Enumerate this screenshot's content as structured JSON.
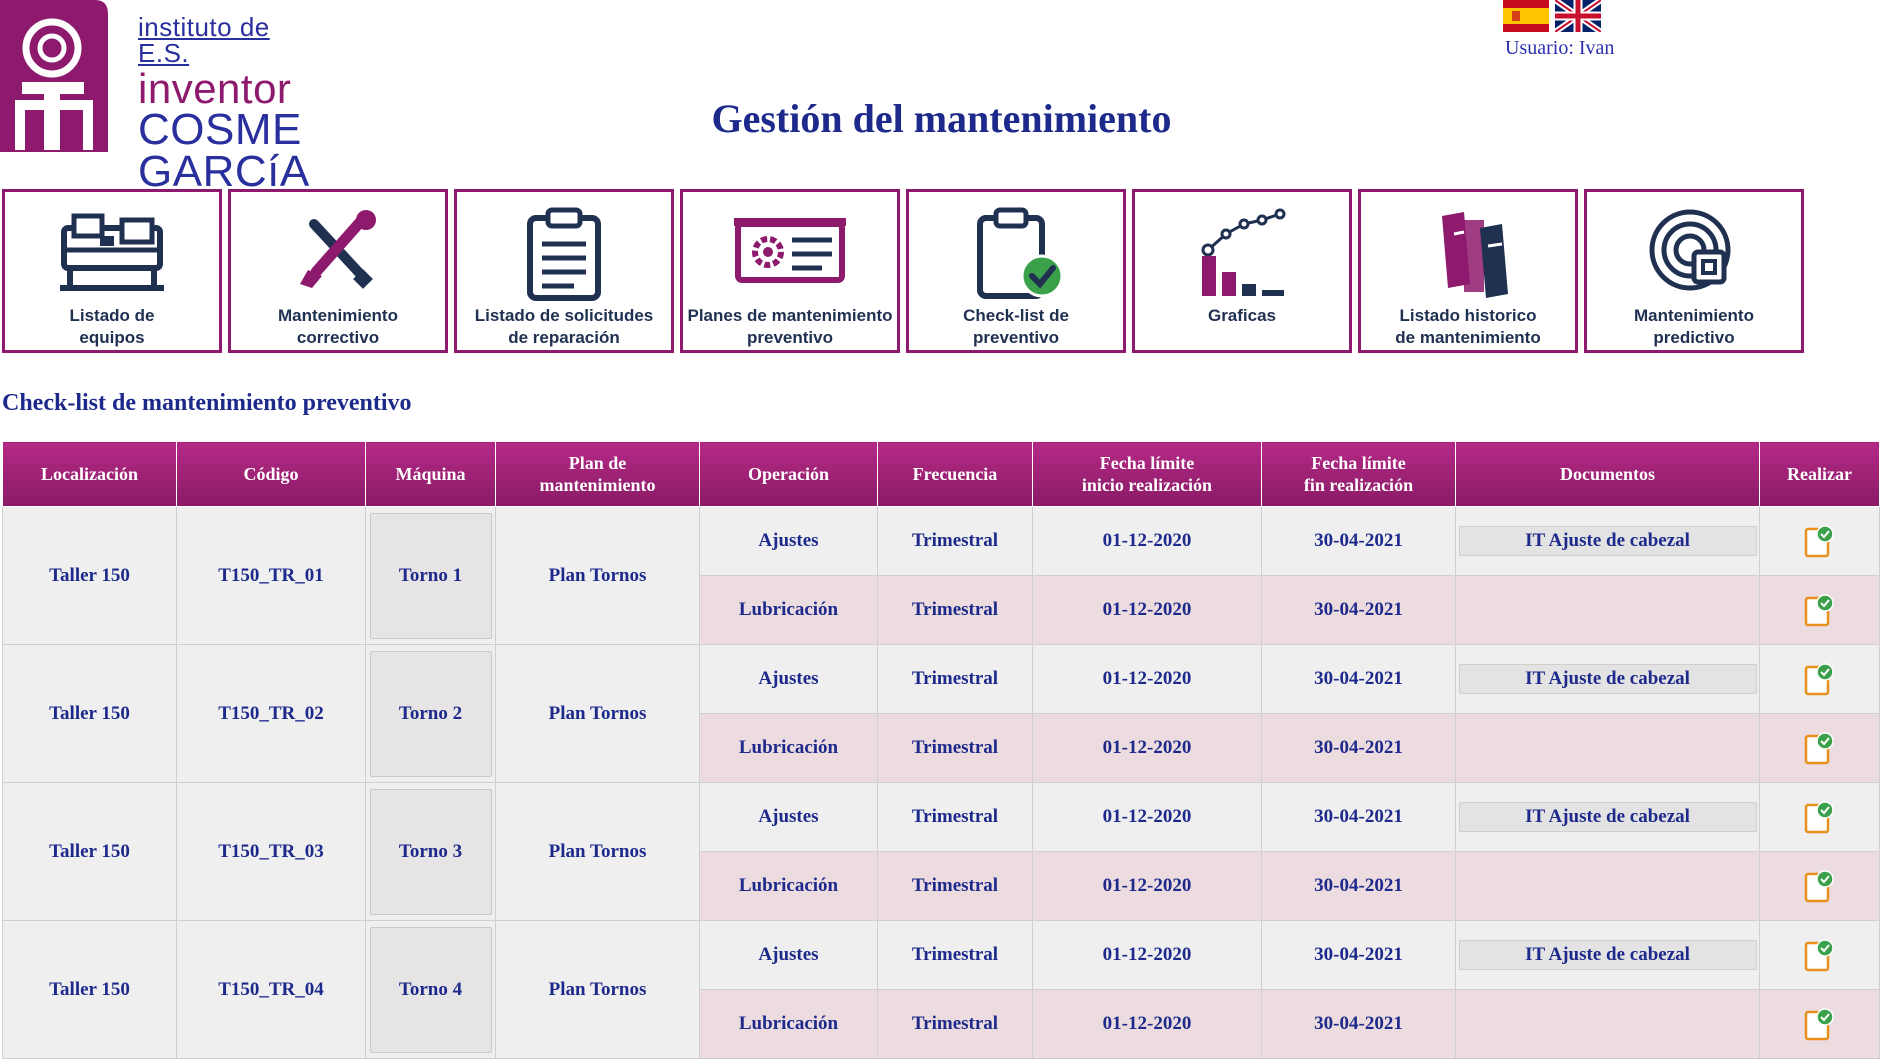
{
  "header": {
    "logo": {
      "line1": "instituto de E.S.",
      "line2": "inventor",
      "line3": "COSME",
      "line4": "GARCíA"
    },
    "user_label": "Usuario: Ivan",
    "title": "Gestión del mantenimiento"
  },
  "colors": {
    "accent": "#8e1a6e",
    "text_blue": "#1d2a8c",
    "row_light": "#efefef",
    "row_pink": "#eddcdf"
  },
  "nav": [
    {
      "label": "Listado de\nequipos",
      "icon": "machine-list-icon"
    },
    {
      "label": "Mantenimiento\ncorrectivo",
      "icon": "wrench-screwdriver-icon"
    },
    {
      "label": "Listado de solicitudes\nde reparación",
      "icon": "clipboard-list-icon"
    },
    {
      "label": "Planes de mantenimiento\npreventivo",
      "icon": "gear-board-icon"
    },
    {
      "label": "Check-list de\npreventivo",
      "icon": "clipboard-check-icon"
    },
    {
      "label": "Graficas",
      "icon": "chart-icon"
    },
    {
      "label": "Listado historico\nde mantenimiento",
      "icon": "books-icon"
    },
    {
      "label": "Mantenimiento\npredictivo",
      "icon": "predictive-icon"
    }
  ],
  "section_title": "Check-list de mantenimiento preventivo",
  "table": {
    "headers": [
      "Localización",
      "Código",
      "Máquina",
      "Plan de\nmantenimiento",
      "Operación",
      "Frecuencia",
      "Fecha límite\ninicio realización",
      "Fecha límite\nfin realización",
      "Documentos",
      "Realizar"
    ],
    "groups": [
      {
        "location": "Taller 150",
        "code": "T150_TR_01",
        "machine": "Torno 1",
        "plan": "Plan Tornos",
        "ops": [
          {
            "operation": "Ajustes",
            "frequency": "Trimestral",
            "start": "01-12-2020",
            "end": "30-04-2021",
            "document": "IT Ajuste de cabezal"
          },
          {
            "operation": "Lubricación",
            "frequency": "Trimestral",
            "start": "01-12-2020",
            "end": "30-04-2021",
            "document": ""
          }
        ]
      },
      {
        "location": "Taller 150",
        "code": "T150_TR_02",
        "machine": "Torno 2",
        "plan": "Plan Tornos",
        "ops": [
          {
            "operation": "Ajustes",
            "frequency": "Trimestral",
            "start": "01-12-2020",
            "end": "30-04-2021",
            "document": "IT Ajuste de cabezal"
          },
          {
            "operation": "Lubricación",
            "frequency": "Trimestral",
            "start": "01-12-2020",
            "end": "30-04-2021",
            "document": ""
          }
        ]
      },
      {
        "location": "Taller 150",
        "code": "T150_TR_03",
        "machine": "Torno 3",
        "plan": "Plan Tornos",
        "ops": [
          {
            "operation": "Ajustes",
            "frequency": "Trimestral",
            "start": "01-12-2020",
            "end": "30-04-2021",
            "document": "IT Ajuste de cabezal"
          },
          {
            "operation": "Lubricación",
            "frequency": "Trimestral",
            "start": "01-12-2020",
            "end": "30-04-2021",
            "document": ""
          }
        ]
      },
      {
        "location": "Taller 150",
        "code": "T150_TR_04",
        "machine": "Torno 4",
        "plan": "Plan Tornos",
        "ops": [
          {
            "operation": "Ajustes",
            "frequency": "Trimestral",
            "start": "01-12-2020",
            "end": "30-04-2021",
            "document": "IT Ajuste de cabezal"
          },
          {
            "operation": "Lubricación",
            "frequency": "Trimestral",
            "start": "01-12-2020",
            "end": "30-04-2021",
            "document": ""
          }
        ]
      }
    ]
  }
}
